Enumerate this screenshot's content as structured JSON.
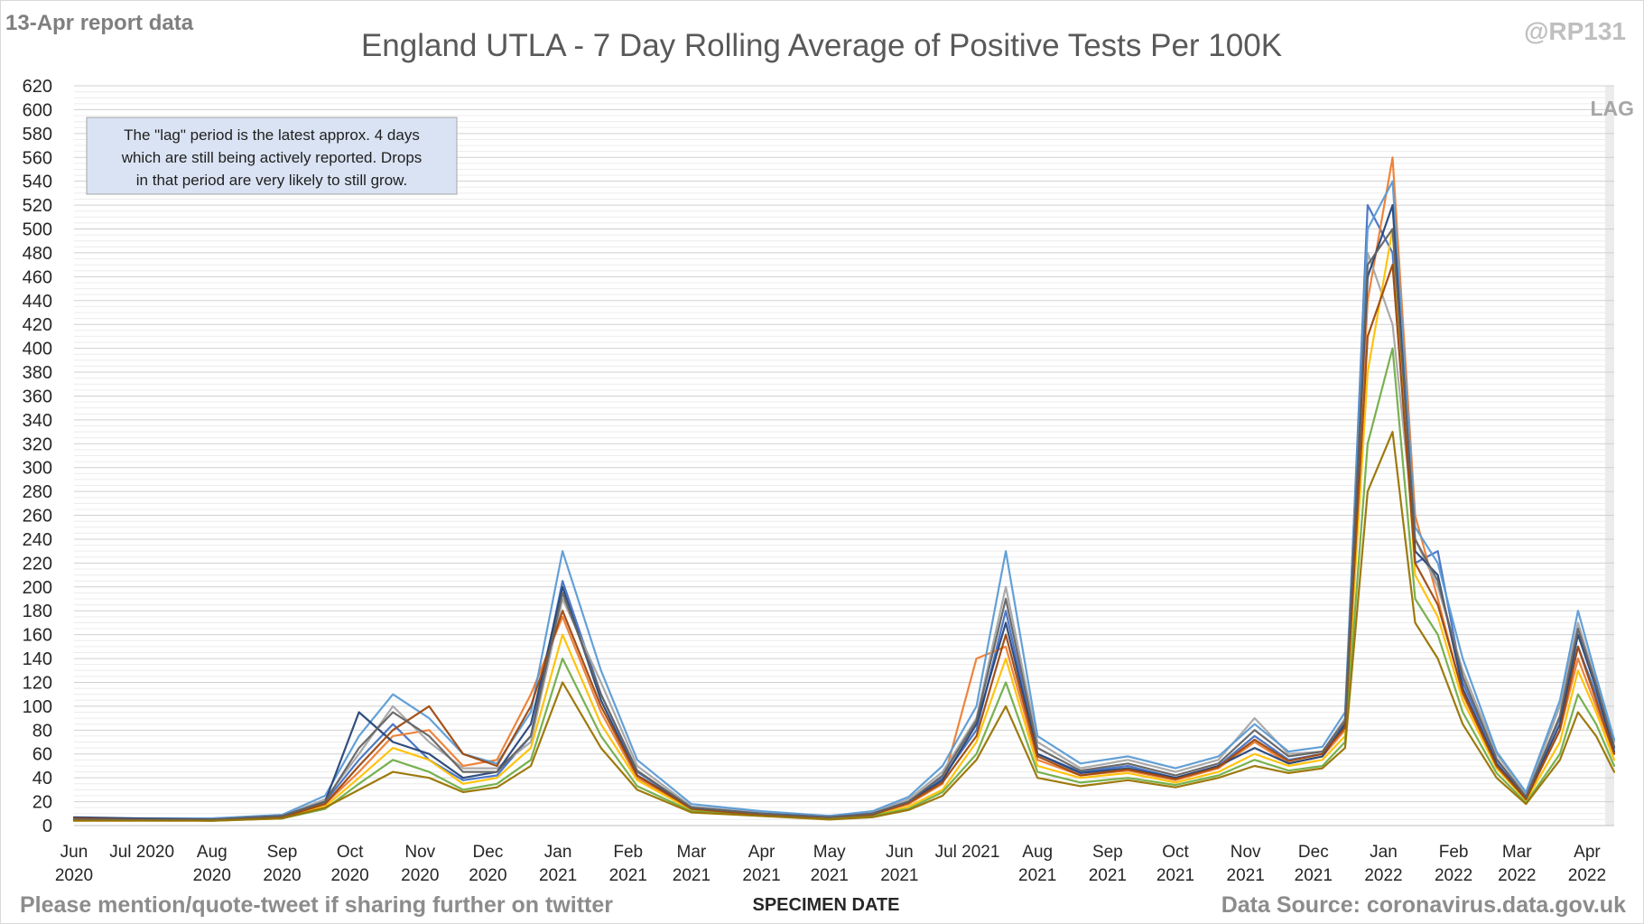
{
  "header": {
    "report_label": "13-Apr report data",
    "handle": "@RP131"
  },
  "lag_label": "LAG",
  "annotation": {
    "lines": [
      "The \"lag\" period is the latest approx. 4 days",
      "which are still being actively reported. Drops",
      "in that period are very likely to still grow."
    ]
  },
  "footer": {
    "left": "Please mention/quote-tweet if sharing further on twitter",
    "right": "Data Source: coronavirus.data.gov.uk"
  },
  "colors": {
    "gridline": "#d9d9d9",
    "lag_band": "#ececec",
    "annotation_fill": "#dae3f3",
    "annotation_border": "#a6a6a6",
    "series_palette": [
      "#4472c4",
      "#ed7d31",
      "#a5a5a5",
      "#ffc000",
      "#5b9bd5",
      "#70ad47",
      "#264478",
      "#9e480e",
      "#636363",
      "#997300",
      "#255e91",
      "#43682b",
      "#698ed0",
      "#f1975a",
      "#b7b7b7",
      "#ffcd33",
      "#7cafdd",
      "#8cc168"
    ]
  },
  "chart_data": {
    "type": "line",
    "title": "England UTLA - 7 Day Rolling Average of Positive Tests Per 100K",
    "xlabel": "SPECIMEN DATE",
    "ylabel": "",
    "ylim": [
      0,
      620
    ],
    "y_ticks": [
      0,
      20,
      40,
      60,
      80,
      100,
      120,
      140,
      160,
      180,
      200,
      220,
      240,
      260,
      280,
      300,
      320,
      340,
      360,
      380,
      400,
      420,
      440,
      460,
      480,
      500,
      520,
      540,
      560,
      580,
      600,
      620
    ],
    "grid": true,
    "legend": "none",
    "x_range": [
      "2020-06-01",
      "2022-04-13"
    ],
    "x_tick_labels": [
      {
        "date": "2020-06-01",
        "line1": "Jun",
        "line2": "2020"
      },
      {
        "date": "2020-07-01",
        "line1": "Jul 2020",
        "line2": ""
      },
      {
        "date": "2020-08-01",
        "line1": "Aug",
        "line2": "2020"
      },
      {
        "date": "2020-09-01",
        "line1": "Sep",
        "line2": "2020"
      },
      {
        "date": "2020-10-01",
        "line1": "Oct",
        "line2": "2020"
      },
      {
        "date": "2020-11-01",
        "line1": "Nov",
        "line2": "2020"
      },
      {
        "date": "2020-12-01",
        "line1": "Dec",
        "line2": "2020"
      },
      {
        "date": "2021-01-01",
        "line1": "Jan",
        "line2": "2021"
      },
      {
        "date": "2021-02-01",
        "line1": "Feb",
        "line2": "2021"
      },
      {
        "date": "2021-03-01",
        "line1": "Mar",
        "line2": "2021"
      },
      {
        "date": "2021-04-01",
        "line1": "Apr",
        "line2": "2021"
      },
      {
        "date": "2021-05-01",
        "line1": "May",
        "line2": "2021"
      },
      {
        "date": "2021-06-01",
        "line1": "Jun",
        "line2": "2021"
      },
      {
        "date": "2021-07-01",
        "line1": "Jul 2021",
        "line2": ""
      },
      {
        "date": "2021-08-01",
        "line1": "Aug",
        "line2": "2021"
      },
      {
        "date": "2021-09-01",
        "line1": "Sep",
        "line2": "2021"
      },
      {
        "date": "2021-10-01",
        "line1": "Oct",
        "line2": "2021"
      },
      {
        "date": "2021-11-01",
        "line1": "Nov",
        "line2": "2021"
      },
      {
        "date": "2021-12-01",
        "line1": "Dec",
        "line2": "2021"
      },
      {
        "date": "2022-01-01",
        "line1": "Jan",
        "line2": "2022"
      },
      {
        "date": "2022-02-01",
        "line1": "Feb",
        "line2": "2022"
      },
      {
        "date": "2022-03-01",
        "line1": "Mar",
        "line2": "2022"
      },
      {
        "date": "2022-04-01",
        "line1": "Apr",
        "line2": "2022"
      }
    ],
    "lag_period": [
      "2022-04-09",
      "2022-04-13"
    ],
    "x": [
      "2020-06-01",
      "2020-07-01",
      "2020-08-01",
      "2020-09-01",
      "2020-09-20",
      "2020-10-05",
      "2020-10-20",
      "2020-11-05",
      "2020-11-20",
      "2020-12-05",
      "2020-12-20",
      "2021-01-03",
      "2021-01-20",
      "2021-02-05",
      "2021-03-01",
      "2021-04-01",
      "2021-05-01",
      "2021-05-20",
      "2021-06-05",
      "2021-06-20",
      "2021-07-05",
      "2021-07-18",
      "2021-08-01",
      "2021-08-20",
      "2021-09-10",
      "2021-10-01",
      "2021-10-20",
      "2021-11-05",
      "2021-11-20",
      "2021-12-05",
      "2021-12-15",
      "2021-12-25",
      "2022-01-05",
      "2022-01-15",
      "2022-01-25",
      "2022-02-05",
      "2022-02-20",
      "2022-03-05",
      "2022-03-20",
      "2022-03-28",
      "2022-04-05",
      "2022-04-13"
    ],
    "series": [
      {
        "values": [
          5,
          6,
          6,
          8,
          20,
          55,
          85,
          55,
          38,
          42,
          75,
          205,
          110,
          45,
          15,
          10,
          7,
          10,
          20,
          40,
          80,
          180,
          60,
          45,
          50,
          40,
          50,
          75,
          55,
          60,
          85,
          520,
          480,
          220,
          230,
          120,
          55,
          25,
          90,
          150,
          110,
          65
        ]
      },
      {
        "values": [
          6,
          5,
          4,
          7,
          18,
          45,
          75,
          80,
          50,
          55,
          110,
          175,
          95,
          40,
          14,
          9,
          6,
          9,
          18,
          35,
          140,
          150,
          55,
          42,
          46,
          38,
          48,
          70,
          52,
          58,
          80,
          440,
          560,
          260,
          190,
          110,
          50,
          22,
          80,
          140,
          100,
          60
        ]
      },
      {
        "values": [
          5,
          5,
          5,
          8,
          22,
          60,
          100,
          70,
          48,
          48,
          70,
          190,
          120,
          50,
          16,
          11,
          8,
          11,
          22,
          45,
          90,
          200,
          70,
          48,
          55,
          45,
          55,
          90,
          60,
          62,
          90,
          480,
          420,
          240,
          200,
          130,
          60,
          26,
          100,
          170,
          120,
          70
        ]
      },
      {
        "values": [
          4,
          5,
          5,
          7,
          16,
          40,
          65,
          55,
          35,
          40,
          65,
          160,
          85,
          38,
          13,
          9,
          6,
          8,
          16,
          30,
          70,
          140,
          50,
          40,
          44,
          36,
          45,
          60,
          50,
          55,
          75,
          380,
          500,
          210,
          175,
          105,
          48,
          21,
          70,
          130,
          95,
          55
        ]
      },
      {
        "values": [
          6,
          6,
          6,
          9,
          25,
          75,
          110,
          90,
          60,
          52,
          95,
          230,
          130,
          55,
          18,
          12,
          8,
          12,
          24,
          50,
          100,
          230,
          75,
          52,
          58,
          48,
          58,
          85,
          62,
          66,
          95,
          500,
          540,
          250,
          220,
          140,
          62,
          28,
          105,
          180,
          125,
          72
        ]
      },
      {
        "values": [
          5,
          5,
          4,
          6,
          14,
          35,
          55,
          45,
          30,
          35,
          55,
          140,
          75,
          33,
          12,
          8,
          6,
          8,
          14,
          28,
          60,
          120,
          45,
          36,
          40,
          34,
          42,
          55,
          46,
          50,
          70,
          320,
          400,
          190,
          160,
          95,
          44,
          19,
          60,
          110,
          85,
          50
        ]
      },
      {
        "values": [
          7,
          6,
          5,
          8,
          20,
          95,
          70,
          60,
          40,
          45,
          85,
          200,
          105,
          42,
          15,
          10,
          7,
          10,
          20,
          38,
          85,
          170,
          60,
          44,
          48,
          40,
          50,
          65,
          52,
          58,
          85,
          460,
          520,
          230,
          210,
          115,
          52,
          23,
          85,
          160,
          115,
          62
        ]
      },
      {
        "values": [
          6,
          5,
          5,
          7,
          18,
          50,
          80,
          100,
          60,
          50,
          100,
          180,
          100,
          42,
          14,
          9,
          7,
          9,
          19,
          36,
          75,
          160,
          58,
          42,
          47,
          39,
          49,
          72,
          54,
          60,
          82,
          410,
          470,
          220,
          185,
          112,
          50,
          22,
          80,
          150,
          105,
          60
        ]
      },
      {
        "values": [
          5,
          5,
          5,
          8,
          20,
          65,
          95,
          75,
          45,
          45,
          75,
          195,
          110,
          46,
          15,
          10,
          7,
          10,
          20,
          42,
          88,
          190,
          65,
          46,
          52,
          42,
          52,
          80,
          58,
          62,
          88,
          470,
          500,
          240,
          205,
          125,
          56,
          24,
          92,
          165,
          118,
          66
        ]
      },
      {
        "values": [
          4,
          4,
          4,
          6,
          15,
          30,
          45,
          40,
          28,
          32,
          50,
          120,
          65,
          30,
          11,
          8,
          5,
          7,
          13,
          25,
          55,
          100,
          40,
          33,
          38,
          32,
          40,
          50,
          44,
          48,
          65,
          280,
          330,
          170,
          140,
          85,
          40,
          18,
          55,
          95,
          75,
          45
        ]
      }
    ]
  }
}
